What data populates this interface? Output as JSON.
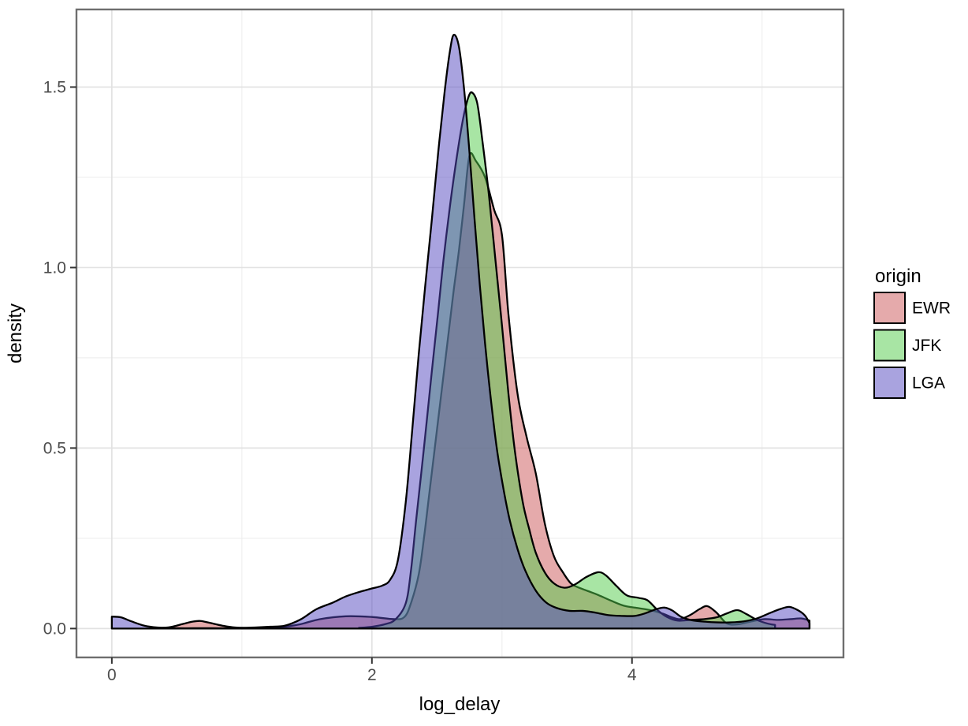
{
  "chart_data": {
    "type": "area",
    "subtype": "density",
    "title": "",
    "xlabel": "log_delay",
    "ylabel": "density",
    "x_ticks": {
      "values": [
        0,
        2,
        4
      ],
      "labels": [
        "0",
        "2",
        "4"
      ]
    },
    "x_minor": [
      1,
      3,
      5
    ],
    "y_ticks": {
      "values": [
        0.0,
        0.5,
        1.0,
        1.5
      ],
      "labels": [
        "0.0",
        "0.5",
        "1.0",
        "1.5"
      ]
    },
    "y_minor": [
      0.25,
      0.75,
      1.25
    ],
    "xlim": [
      -0.272,
      5.626
    ],
    "ylim": [
      -0.08,
      1.715
    ],
    "grid": true,
    "legend_position": "right",
    "legend": {
      "title": "origin",
      "entries": [
        {
          "label": "EWR",
          "color": "#CC5657"
        },
        {
          "label": "JFK",
          "color": "#52CC49"
        },
        {
          "label": "LGA",
          "color": "#5348C0"
        }
      ]
    },
    "style": {
      "fill_opacity": 0.5,
      "stroke_color": "#000000",
      "stroke_width": 2.3,
      "panel_border_color": "#6e6e6e",
      "grid_major_color": "#e2e2e2",
      "grid_minor_color": "#efefef",
      "tick_color": "#333333"
    },
    "series": [
      {
        "name": "EWR",
        "color": "#CC5657",
        "points": [
          [
            0.35,
            0.001
          ],
          [
            0.45,
            0.004
          ],
          [
            0.55,
            0.013
          ],
          [
            0.62,
            0.019
          ],
          [
            0.68,
            0.021
          ],
          [
            0.75,
            0.016
          ],
          [
            0.85,
            0.008
          ],
          [
            0.95,
            0.003
          ],
          [
            1.1,
            0.002
          ],
          [
            1.3,
            0.004
          ],
          [
            1.45,
            0.012
          ],
          [
            1.6,
            0.026
          ],
          [
            1.8,
            0.034
          ],
          [
            2.0,
            0.032
          ],
          [
            2.17,
            0.026
          ],
          [
            2.25,
            0.032
          ],
          [
            2.3,
            0.07
          ],
          [
            2.36,
            0.15
          ],
          [
            2.4,
            0.25
          ],
          [
            2.44,
            0.37
          ],
          [
            2.49,
            0.52
          ],
          [
            2.54,
            0.67
          ],
          [
            2.59,
            0.82
          ],
          [
            2.63,
            0.94
          ],
          [
            2.67,
            1.05
          ],
          [
            2.71,
            1.18
          ],
          [
            2.75,
            1.31
          ],
          [
            2.8,
            1.295
          ],
          [
            2.87,
            1.25
          ],
          [
            2.94,
            1.16
          ],
          [
            3.0,
            1.09
          ],
          [
            3.05,
            0.87
          ],
          [
            3.12,
            0.65
          ],
          [
            3.19,
            0.53
          ],
          [
            3.26,
            0.43
          ],
          [
            3.33,
            0.29
          ],
          [
            3.4,
            0.2
          ],
          [
            3.47,
            0.155
          ],
          [
            3.53,
            0.125
          ],
          [
            3.58,
            0.115
          ],
          [
            3.66,
            0.104
          ],
          [
            3.74,
            0.093
          ],
          [
            3.84,
            0.077
          ],
          [
            3.94,
            0.063
          ],
          [
            4.04,
            0.057
          ],
          [
            4.14,
            0.051
          ],
          [
            4.24,
            0.041
          ],
          [
            4.3,
            0.032
          ],
          [
            4.37,
            0.026
          ],
          [
            4.45,
            0.038
          ],
          [
            4.52,
            0.054
          ],
          [
            4.58,
            0.062
          ],
          [
            4.65,
            0.044
          ],
          [
            4.73,
            0.014
          ],
          [
            4.82,
            0.012
          ],
          [
            4.92,
            0.02
          ],
          [
            5.02,
            0.026
          ],
          [
            5.12,
            0.024
          ],
          [
            5.22,
            0.026
          ],
          [
            5.3,
            0.028
          ],
          [
            5.365,
            0.022
          ]
        ]
      },
      {
        "name": "JFK",
        "color": "#52CC49",
        "points": [
          [
            1.9,
            0.002
          ],
          [
            2.0,
            0.005
          ],
          [
            2.1,
            0.012
          ],
          [
            2.18,
            0.025
          ],
          [
            2.26,
            0.07
          ],
          [
            2.3,
            0.16
          ],
          [
            2.34,
            0.3
          ],
          [
            2.4,
            0.5
          ],
          [
            2.46,
            0.71
          ],
          [
            2.51,
            0.88
          ],
          [
            2.55,
            1.02
          ],
          [
            2.6,
            1.17
          ],
          [
            2.65,
            1.3
          ],
          [
            2.7,
            1.41
          ],
          [
            2.74,
            1.47
          ],
          [
            2.77,
            1.485
          ],
          [
            2.81,
            1.455
          ],
          [
            2.85,
            1.35
          ],
          [
            2.9,
            1.2
          ],
          [
            2.95,
            1.02
          ],
          [
            3.0,
            0.84
          ],
          [
            3.05,
            0.65
          ],
          [
            3.1,
            0.49
          ],
          [
            3.16,
            0.35
          ],
          [
            3.21,
            0.275
          ],
          [
            3.26,
            0.21
          ],
          [
            3.33,
            0.155
          ],
          [
            3.4,
            0.125
          ],
          [
            3.48,
            0.113
          ],
          [
            3.56,
            0.122
          ],
          [
            3.65,
            0.143
          ],
          [
            3.74,
            0.156
          ],
          [
            3.8,
            0.147
          ],
          [
            3.88,
            0.118
          ],
          [
            3.96,
            0.092
          ],
          [
            4.05,
            0.085
          ],
          [
            4.12,
            0.078
          ],
          [
            4.2,
            0.05
          ],
          [
            4.27,
            0.032
          ],
          [
            4.35,
            0.022
          ],
          [
            4.45,
            0.024
          ],
          [
            4.55,
            0.026
          ],
          [
            4.65,
            0.031
          ],
          [
            4.73,
            0.042
          ],
          [
            4.81,
            0.051
          ],
          [
            4.88,
            0.04
          ],
          [
            4.96,
            0.024
          ],
          [
            5.04,
            0.014
          ],
          [
            5.1,
            0.01
          ]
        ]
      },
      {
        "name": "LGA",
        "color": "#5348C0",
        "points": [
          [
            0.0,
            0.033
          ],
          [
            0.07,
            0.031
          ],
          [
            0.15,
            0.02
          ],
          [
            0.25,
            0.008
          ],
          [
            0.35,
            0.003
          ],
          [
            0.5,
            0.001
          ],
          [
            0.7,
            0.001
          ],
          [
            0.9,
            0.001
          ],
          [
            1.1,
            0.003
          ],
          [
            1.22,
            0.005
          ],
          [
            1.33,
            0.008
          ],
          [
            1.45,
            0.025
          ],
          [
            1.57,
            0.053
          ],
          [
            1.7,
            0.072
          ],
          [
            1.8,
            0.089
          ],
          [
            1.9,
            0.101
          ],
          [
            2.0,
            0.111
          ],
          [
            2.08,
            0.119
          ],
          [
            2.14,
            0.135
          ],
          [
            2.2,
            0.19
          ],
          [
            2.26,
            0.35
          ],
          [
            2.31,
            0.55
          ],
          [
            2.36,
            0.76
          ],
          [
            2.41,
            0.95
          ],
          [
            2.46,
            1.13
          ],
          [
            2.51,
            1.32
          ],
          [
            2.56,
            1.49
          ],
          [
            2.6,
            1.6
          ],
          [
            2.63,
            1.645
          ],
          [
            2.67,
            1.61
          ],
          [
            2.71,
            1.49
          ],
          [
            2.75,
            1.32
          ],
          [
            2.79,
            1.13
          ],
          [
            2.83,
            0.95
          ],
          [
            2.87,
            0.79
          ],
          [
            2.91,
            0.65
          ],
          [
            2.96,
            0.5
          ],
          [
            3.01,
            0.39
          ],
          [
            3.06,
            0.3
          ],
          [
            3.12,
            0.22
          ],
          [
            3.18,
            0.16
          ],
          [
            3.26,
            0.105
          ],
          [
            3.34,
            0.072
          ],
          [
            3.42,
            0.057
          ],
          [
            3.52,
            0.049
          ],
          [
            3.62,
            0.049
          ],
          [
            3.72,
            0.044
          ],
          [
            3.82,
            0.037
          ],
          [
            3.92,
            0.035
          ],
          [
            4.02,
            0.035
          ],
          [
            4.1,
            0.042
          ],
          [
            4.18,
            0.053
          ],
          [
            4.25,
            0.058
          ],
          [
            4.31,
            0.05
          ],
          [
            4.38,
            0.032
          ],
          [
            4.46,
            0.023
          ],
          [
            4.56,
            0.019
          ],
          [
            4.66,
            0.017
          ],
          [
            4.76,
            0.017
          ],
          [
            4.86,
            0.02
          ],
          [
            4.96,
            0.028
          ],
          [
            5.06,
            0.043
          ],
          [
            5.14,
            0.054
          ],
          [
            5.21,
            0.06
          ],
          [
            5.28,
            0.05
          ],
          [
            5.33,
            0.036
          ],
          [
            5.365,
            0.015
          ]
        ]
      }
    ]
  }
}
